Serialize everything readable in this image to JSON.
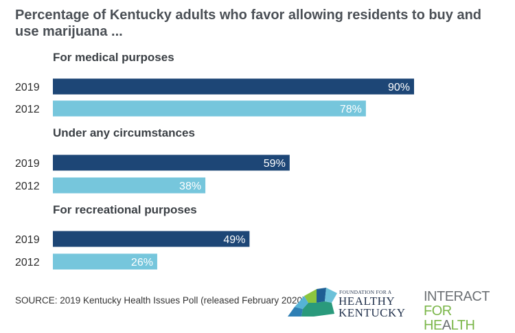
{
  "title": "Percentage of Kentucky adults who favor allowing residents to buy and use marijuana ...",
  "colors": {
    "bar_2019": "#1d4676",
    "bar_2012": "#76c6dc",
    "heading": "#3a3f44",
    "text": "#2b2b2b"
  },
  "chart_data": {
    "type": "bar",
    "orientation": "horizontal",
    "xlim": [
      0,
      100
    ],
    "groups": [
      {
        "heading": "For medical purposes",
        "rows": [
          {
            "year": "2019",
            "value": 90,
            "label": "90%"
          },
          {
            "year": "2012",
            "value": 78,
            "label": "78%"
          }
        ]
      },
      {
        "heading": "Under any circumstances",
        "rows": [
          {
            "year": "2019",
            "value": 59,
            "label": "59%"
          },
          {
            "year": "2012",
            "value": 38,
            "label": "38%"
          }
        ]
      },
      {
        "heading": "For recreational purposes",
        "rows": [
          {
            "year": "2019",
            "value": 49,
            "label": "49%"
          },
          {
            "year": "2012",
            "value": 26,
            "label": "26%"
          }
        ]
      }
    ]
  },
  "source": "SOURCE: 2019 Kentucky Health Issues Poll (released February 2020)",
  "logos": {
    "fhk": {
      "small": "FOUNDATION FOR A",
      "line1": "HEALTHY",
      "line2": "KENTUCKY"
    },
    "ifh": {
      "line1": "INTERACT",
      "line2_a": "FOR HE",
      "line2_b": "A",
      "line2_c": "LTH"
    }
  }
}
